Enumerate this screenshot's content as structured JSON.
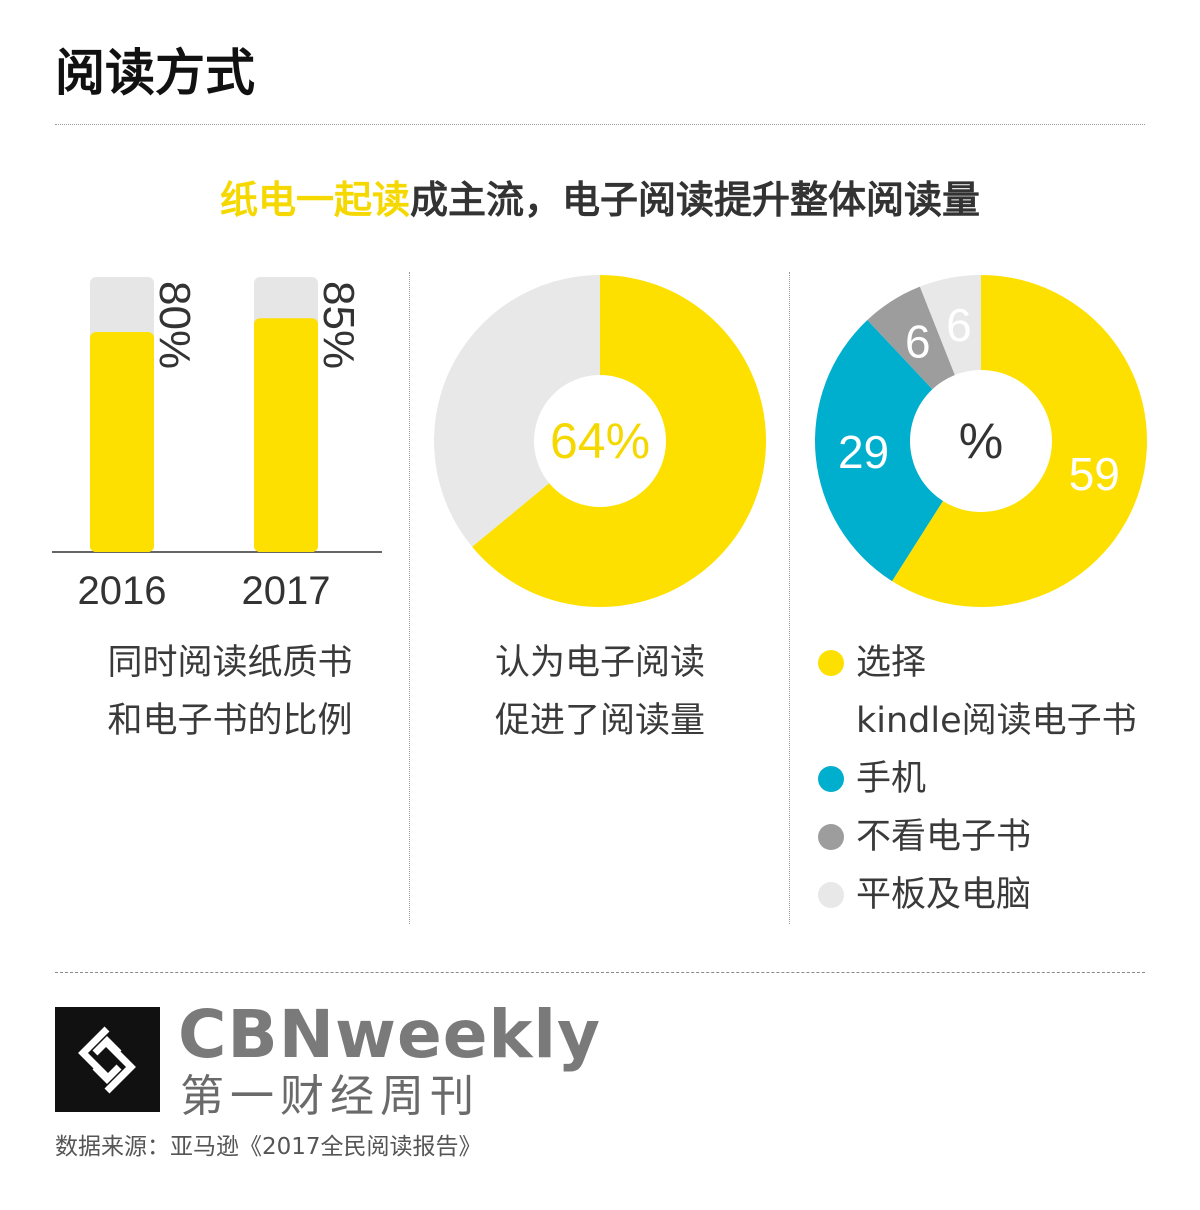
{
  "page": {
    "title": "阅读方式",
    "headline_highlight": "纸电一起读",
    "headline_rest": "成主流，电子阅读提升整体阅读量",
    "source": "数据来源：亚马逊《2017全民阅读报告》"
  },
  "brand": {
    "name_en": "CBNweekly",
    "name_cn": "第一财经周刊",
    "logo_icon": "cbn-logo-icon"
  },
  "colors": {
    "yellow": "#fee000",
    "blue": "#00aece",
    "dark_gray": "#9d9d9d",
    "light_gray": "#e8e8e8",
    "track": "#e6e6e6"
  },
  "chart_data": [
    {
      "type": "bar",
      "categories": [
        "2016",
        "2017"
      ],
      "values": [
        80,
        85
      ],
      "value_labels": [
        "80%",
        "85%"
      ],
      "ylim": [
        0,
        100
      ],
      "caption": [
        "同时阅读纸质书",
        "和电子书的比例"
      ]
    },
    {
      "type": "pie",
      "style": "donut",
      "slices": [
        {
          "value": 64,
          "color": "#fee000"
        },
        {
          "value": 36,
          "color": "#e8e8e8"
        }
      ],
      "center_label": "64%",
      "caption": [
        "认为电子阅读",
        "促进了阅读量"
      ]
    },
    {
      "type": "pie",
      "style": "donut",
      "center_label": "%",
      "slices": [
        {
          "name": "选择kindle阅读电子书",
          "legend": "选择\nkindle阅读电子书",
          "value": 59,
          "label": "59",
          "color": "#fee000"
        },
        {
          "name": "手机",
          "legend": "手机",
          "value": 29,
          "label": "29",
          "color": "#00aece"
        },
        {
          "name": "不看电子书",
          "legend": "不看电子书",
          "value": 6,
          "label": "6",
          "color": "#9d9d9d"
        },
        {
          "name": "平板及电脑",
          "legend": "平板及电脑",
          "value": 6,
          "label": "6",
          "color": "#e8e8e8"
        }
      ],
      "legend_order": [
        0,
        1,
        2,
        3
      ]
    }
  ]
}
